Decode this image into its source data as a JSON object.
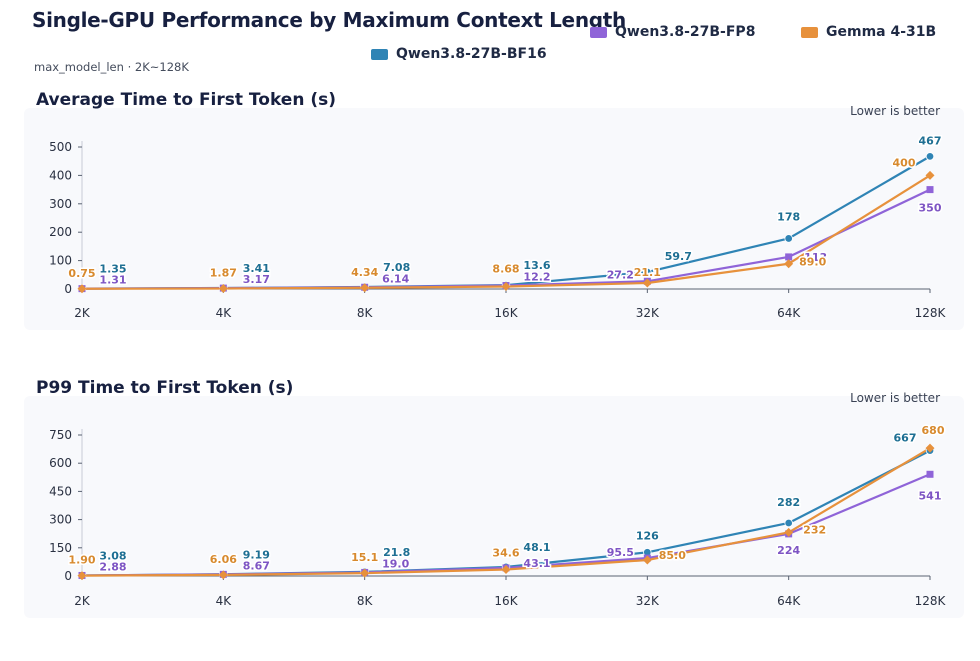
{
  "header": {
    "title": "Single-GPU Performance by Maximum Context Length",
    "subtitle": "max_model_len · 2K~128K"
  },
  "legend": [
    {
      "name": "Qwen3.8-27B-BF16",
      "color": "#2f84b5"
    },
    {
      "name": "Qwen3.8-27B-FP8",
      "color": "#8f64d8"
    },
    {
      "name": "Gemma 4-31B",
      "color": "#e7913c"
    }
  ],
  "chart_data": [
    {
      "type": "line",
      "title": "Average Time to First Token (s)",
      "note": "Lower is better",
      "categories": [
        "2K",
        "4K",
        "8K",
        "16K",
        "32K",
        "64K",
        "128K"
      ],
      "ylim": [
        0,
        500
      ],
      "yticks": [
        0,
        100,
        200,
        300,
        400,
        500
      ],
      "grid": false,
      "series": [
        {
          "name": "Qwen3.8-27B-BF16",
          "color": "#2f84b5",
          "marker": "circle",
          "values": [
            1.35,
            3.41,
            7.08,
            13.6,
            59.7,
            178,
            467
          ],
          "labels": [
            "1.35",
            "3.41",
            "7.08",
            "13.6",
            "59.7",
            "178",
            "467"
          ]
        },
        {
          "name": "Qwen3.8-27B-FP8",
          "color": "#8f64d8",
          "marker": "square",
          "values": [
            1.31,
            3.17,
            6.14,
            12.2,
            27.2,
            113,
            350
          ],
          "labels": [
            "1.31",
            "3.17",
            "6.14",
            "12.2",
            "27.2",
            "113",
            "350"
          ]
        },
        {
          "name": "Gemma 4-31B",
          "color": "#e7913c",
          "marker": "diamond",
          "values": [
            0.75,
            1.87,
            4.34,
            8.68,
            21.1,
            89.0,
            400
          ],
          "labels": [
            "0.75",
            "1.87",
            "4.34",
            "8.68",
            "21.1",
            "89.0",
            "400"
          ]
        }
      ]
    },
    {
      "type": "line",
      "title": "P99 Time to First Token (s)",
      "note": "Lower is better",
      "categories": [
        "2K",
        "4K",
        "8K",
        "16K",
        "32K",
        "64K",
        "128K"
      ],
      "ylim": [
        0,
        750
      ],
      "yticks": [
        0,
        150,
        300,
        450,
        600,
        750
      ],
      "grid": false,
      "series": [
        {
          "name": "Qwen3.8-27B-BF16",
          "color": "#2f84b5",
          "marker": "circle",
          "values": [
            3.08,
            9.19,
            21.8,
            48.1,
            126,
            282,
            667
          ],
          "labels": [
            "3.08",
            "9.19",
            "21.8",
            "48.1",
            "126",
            "282",
            "667"
          ]
        },
        {
          "name": "Qwen3.8-27B-FP8",
          "color": "#8f64d8",
          "marker": "square",
          "values": [
            2.88,
            8.67,
            19.0,
            43.1,
            95.5,
            224,
            541
          ],
          "labels": [
            "2.88",
            "8.67",
            "19.0",
            "43.1",
            "95.5",
            "224",
            "541"
          ]
        },
        {
          "name": "Gemma 4-31B",
          "color": "#e7913c",
          "marker": "diamond",
          "values": [
            1.9,
            6.06,
            15.1,
            34.6,
            85.0,
            232,
            680
          ],
          "labels": [
            "1.90",
            "6.06",
            "15.1",
            "34.6",
            "85.0",
            "232",
            "680"
          ]
        }
      ]
    }
  ]
}
